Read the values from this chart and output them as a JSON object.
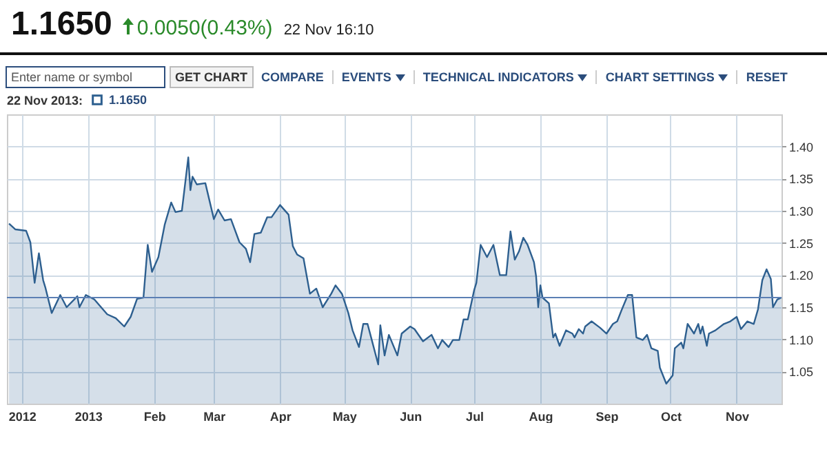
{
  "chart_data": {
    "type": "area",
    "title": "1.1650",
    "subtitle": "0.0050(0.43%)",
    "annotations": [
      "22 Nov 16:10",
      "Enter name or symbol",
      "GET CHART",
      "COMPARE",
      "EVENTS",
      "TECHNICAL INDICATORS",
      "CHART SETTINGS",
      "RESET"
    ],
    "legend_title": "22 Nov 2013:",
    "legend": "top left",
    "grid": true,
    "x": [
      "2012-11-25",
      "2012-11-28",
      "2012-12-03",
      "2012-12-05",
      "2012-12-07",
      "2012-12-09",
      "2012-12-11",
      "2012-12-12",
      "2012-12-15",
      "2012-12-19",
      "2012-12-22",
      "2012-12-27",
      "2012-12-28",
      "2012-12-31",
      "2013-01-04",
      "2013-01-10",
      "2013-01-14",
      "2013-01-18",
      "2013-01-21",
      "2013-01-24",
      "2013-01-27",
      "2013-01-29",
      "2013-01-31",
      "2013-02-03",
      "2013-02-06",
      "2013-02-09",
      "2013-02-11",
      "2013-02-14",
      "2013-02-17",
      "2013-02-18",
      "2013-02-19",
      "2013-02-21",
      "2013-02-25",
      "2013-03-01",
      "2013-03-03",
      "2013-03-06",
      "2013-03-09",
      "2013-03-13",
      "2013-03-16",
      "2013-03-18",
      "2013-03-20",
      "2013-03-23",
      "2013-03-26",
      "2013-03-28",
      "2013-04-01",
      "2013-04-05",
      "2013-04-07",
      "2013-04-09",
      "2013-04-12",
      "2013-04-15",
      "2013-04-18",
      "2013-04-21",
      "2013-04-25",
      "2013-04-27",
      "2013-04-30",
      "2013-05-03",
      "2013-05-05",
      "2013-05-08",
      "2013-05-10",
      "2013-05-12",
      "2013-05-14",
      "2013-05-17",
      "2013-05-18",
      "2013-05-20",
      "2013-05-22",
      "2013-05-26",
      "2013-05-28",
      "2013-06-01",
      "2013-06-03",
      "2013-06-07",
      "2013-06-11",
      "2013-06-14",
      "2013-06-16",
      "2013-06-19",
      "2013-06-21",
      "2013-06-24",
      "2013-06-26",
      "2013-06-28",
      "2013-07-01",
      "2013-07-02",
      "2013-07-04",
      "2013-07-07",
      "2013-07-10",
      "2013-07-13",
      "2013-07-16",
      "2013-07-18",
      "2013-07-20",
      "2013-07-22",
      "2013-07-24",
      "2013-07-26",
      "2013-07-29",
      "2013-07-30",
      "2013-07-31",
      "2013-08-01",
      "2013-08-02",
      "2013-08-05",
      "2013-08-07",
      "2013-08-08",
      "2013-08-10",
      "2013-08-13",
      "2013-08-16",
      "2013-08-17",
      "2013-08-19",
      "2013-08-21",
      "2013-08-22",
      "2013-08-25",
      "2013-08-29",
      "2013-09-01",
      "2013-09-04",
      "2013-09-06",
      "2013-09-08",
      "2013-09-11",
      "2013-09-13",
      "2013-09-15",
      "2013-09-18",
      "2013-09-20",
      "2013-09-22",
      "2013-09-25",
      "2013-09-26",
      "2013-09-29",
      "2013-10-02",
      "2013-10-03",
      "2013-10-06",
      "2013-10-07",
      "2013-10-09",
      "2013-10-12",
      "2013-10-14",
      "2013-10-15",
      "2013-10-16",
      "2013-10-18",
      "2013-10-19",
      "2013-10-22",
      "2013-10-26",
      "2013-10-29",
      "2013-11-01",
      "2013-11-03",
      "2013-11-06",
      "2013-11-09",
      "2013-11-11",
      "2013-11-13",
      "2013-11-15",
      "2013-11-17",
      "2013-11-18",
      "2013-11-20",
      "2013-11-22"
    ],
    "series": [
      {
        "name": "1.1650",
        "color": "#2d5f8f",
        "values": [
          1.28,
          1.271,
          1.269,
          1.251,
          1.188,
          1.234,
          1.192,
          1.181,
          1.141,
          1.169,
          1.15,
          1.167,
          1.15,
          1.169,
          1.162,
          1.139,
          1.133,
          1.12,
          1.135,
          1.163,
          1.165,
          1.247,
          1.205,
          1.228,
          1.279,
          1.313,
          1.298,
          1.3,
          1.383,
          1.332,
          1.353,
          1.341,
          1.343,
          1.287,
          1.302,
          1.285,
          1.287,
          1.251,
          1.241,
          1.22,
          1.264,
          1.266,
          1.29,
          1.29,
          1.309,
          1.294,
          1.245,
          1.232,
          1.226,
          1.171,
          1.179,
          1.15,
          1.171,
          1.184,
          1.171,
          1.141,
          1.114,
          1.088,
          1.124,
          1.124,
          1.099,
          1.061,
          1.122,
          1.075,
          1.107,
          1.075,
          1.109,
          1.12,
          1.116,
          1.097,
          1.107,
          1.086,
          1.099,
          1.088,
          1.099,
          1.099,
          1.131,
          1.131,
          1.177,
          1.188,
          1.247,
          1.228,
          1.247,
          1.2,
          1.2,
          1.268,
          1.224,
          1.237,
          1.258,
          1.247,
          1.22,
          1.198,
          1.15,
          1.184,
          1.165,
          1.156,
          1.103,
          1.109,
          1.09,
          1.114,
          1.109,
          1.103,
          1.116,
          1.109,
          1.12,
          1.128,
          1.118,
          1.109,
          1.124,
          1.128,
          1.145,
          1.169,
          1.169,
          1.103,
          1.099,
          1.107,
          1.086,
          1.082,
          1.056,
          1.031,
          1.044,
          1.086,
          1.095,
          1.086,
          1.124,
          1.109,
          1.124,
          1.109,
          1.12,
          1.09,
          1.109,
          1.114,
          1.124,
          1.128,
          1.135,
          1.116,
          1.128,
          1.124,
          1.147,
          1.192,
          1.209,
          1.194,
          1.15,
          1.162,
          1.165
        ]
      }
    ],
    "xlim": [
      "2012-11-24",
      "2013-11-22"
    ],
    "xticks": [
      {
        "value": "2012-12-01",
        "label": "2012"
      },
      {
        "value": "2013-01-01",
        "label": "2013"
      },
      {
        "value": "2013-02-01",
        "label": "Feb"
      },
      {
        "value": "2013-03-01",
        "label": "Mar"
      },
      {
        "value": "2013-04-01",
        "label": "Apr"
      },
      {
        "value": "2013-05-01",
        "label": "May"
      },
      {
        "value": "2013-06-01",
        "label": "Jun"
      },
      {
        "value": "2013-07-01",
        "label": "Jul"
      },
      {
        "value": "2013-08-01",
        "label": "Aug"
      },
      {
        "value": "2013-09-01",
        "label": "Sep"
      },
      {
        "value": "2013-10-01",
        "label": "Oct"
      },
      {
        "value": "2013-11-01",
        "label": "Nov"
      }
    ],
    "ylim": [
      1.0,
      1.45
    ],
    "yticks": [
      1.05,
      {
        "value": 1.1,
        "label": "1.10"
      },
      1.15,
      {
        "value": 1.2,
        "label": "1.20"
      },
      1.25,
      {
        "value": 1.3,
        "label": "1.30"
      },
      1.35,
      {
        "value": 1.4,
        "label": "1.40"
      }
    ],
    "ref_lines": [
      {
        "axis": "y",
        "value": 1.165,
        "color": "#5b7fb4"
      }
    ]
  }
}
